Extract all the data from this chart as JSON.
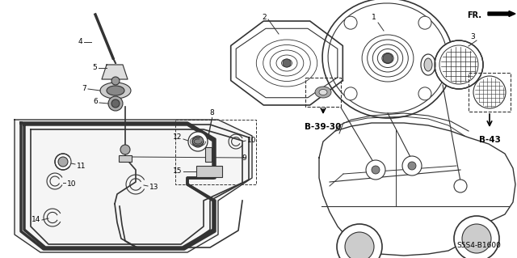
{
  "bg_color": "#ffffff",
  "part_color": "#333333",
  "diagram_code": "S5S4-B1600",
  "ref_b3930": "B-39-30",
  "ref_b43": "B-43",
  "figsize": [
    6.4,
    3.19
  ],
  "dpi": 100
}
